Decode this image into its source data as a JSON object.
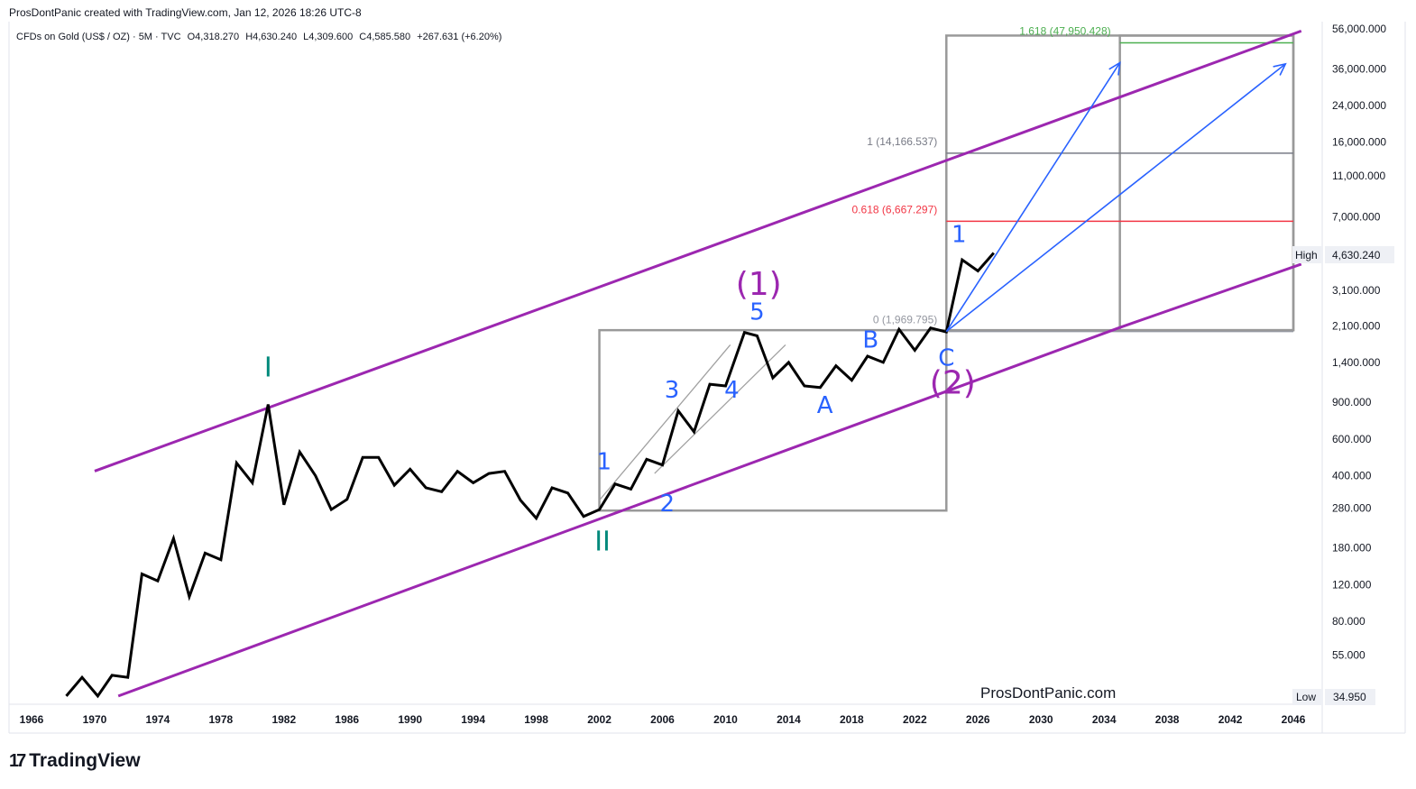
{
  "header": {
    "credit": "ProsDontPanic created with TradingView.com, Jan 12, 2026 18:26 UTC-8"
  },
  "symbol": {
    "name": "CFDs on Gold (US$ / OZ) · 5M · TVC",
    "open": "O4,318.270",
    "high": "H4,630.240",
    "low": "L4,309.600",
    "close": "C4,585.580",
    "change": "+267.631 (+6.20%)"
  },
  "watermark": "ProsDontPanic.com",
  "logo": {
    "text": "TradingView",
    "mark": "17"
  },
  "badges": {
    "high_label": "High",
    "high_value": "4,630.240",
    "low_label": "Low",
    "low_value": "34.950"
  },
  "colors": {
    "channel": "#9c27b0",
    "price": "#000000",
    "box": "#999999",
    "fib_1618": "#4caf50",
    "fib_1": "#787b86",
    "fib_0618": "#f23645",
    "fib_0": "#9598a1",
    "wave_blue": "#2962ff",
    "wave_teal": "#00897b",
    "wave_purple": "#9c27b0",
    "arrow": "#2962ff"
  },
  "chart_data": {
    "type": "line",
    "yscale": "log",
    "ylim": [
      34.95,
      56000
    ],
    "xlim": [
      1966,
      2048
    ],
    "x_ticks": [
      "1966",
      "1970",
      "1974",
      "1978",
      "1982",
      "1986",
      "1990",
      "1994",
      "1998",
      "2002",
      "2006",
      "2010",
      "2014",
      "2018",
      "2022",
      "2026",
      "2030",
      "2034",
      "2038",
      "2042",
      "2046"
    ],
    "y_ticks": [
      {
        "value": 56000,
        "label": "56,000.000"
      },
      {
        "value": 36000,
        "label": "36,000.000"
      },
      {
        "value": 24000,
        "label": "24,000.000"
      },
      {
        "value": 16000,
        "label": "16,000.000"
      },
      {
        "value": 11000,
        "label": "11,000.000"
      },
      {
        "value": 7000,
        "label": "7,000.000"
      },
      {
        "value": 3100,
        "label": "3,100.000"
      },
      {
        "value": 2100,
        "label": "2,100.000"
      },
      {
        "value": 1400,
        "label": "1,400.000"
      },
      {
        "value": 900,
        "label": "900.000"
      },
      {
        "value": 600,
        "label": "600.000"
      },
      {
        "value": 400,
        "label": "400.000"
      },
      {
        "value": 280,
        "label": "280.000"
      },
      {
        "value": 180,
        "label": "180.000"
      },
      {
        "value": 120,
        "label": "120.000"
      },
      {
        "value": 80,
        "label": "80.000"
      },
      {
        "value": 55,
        "label": "55.000"
      }
    ],
    "series": [
      {
        "x": [
          1968.2,
          1969.2,
          1970.2,
          1971.1,
          1972.1,
          1973.0,
          1974.0,
          1975.0,
          1976.0,
          1977.0,
          1978.0,
          1979.0,
          1980.0,
          1981.0,
          1982.0,
          1983.0,
          1984.0,
          1985.0,
          1986.0,
          1987.0,
          1988.0,
          1989.0,
          1990.0,
          1991.0,
          1992.0,
          1993.0,
          1994.0,
          1995.0,
          1996.0,
          1997.0,
          1998.0,
          1999.0,
          2000.0,
          2001.0,
          2002.0,
          2003.0,
          2004.0,
          2005.0,
          2006.0,
          2007.0,
          2008.0,
          2009.0,
          2010.0,
          2011.2,
          2012.0,
          2013.0,
          2014.0,
          2015.0,
          2016.0,
          2017.0,
          2018.0,
          2019.0,
          2020.0,
          2021.0,
          2022.0,
          2023.0,
          2024.0,
          2025.0,
          2026.0,
          2027.0
        ],
        "y": [
          35,
          43,
          35,
          44,
          43,
          135,
          125,
          200,
          105,
          170,
          158,
          460,
          370,
          880,
          290,
          520,
          400,
          275,
          308,
          490,
          490,
          360,
          430,
          350,
          335,
          420,
          370,
          410,
          420,
          305,
          250,
          350,
          330,
          255,
          275,
          365,
          345,
          480,
          450,
          820,
          650,
          1100,
          1080,
          1950,
          1880,
          1180,
          1400,
          1080,
          1060,
          1350,
          1150,
          1500,
          1400,
          2020,
          1600,
          2050,
          1960,
          4350,
          3850,
          4700
        ]
      }
    ],
    "channel": {
      "upper": {
        "x": [
          1970.0,
          2046.5
        ],
        "y": [
          421,
          54700
        ]
      },
      "lower": {
        "x": [
          1971.5,
          2035.0
        ],
        "y": [
          35.0,
          2060
        ]
      },
      "lower_ext": {
        "x": [
          2035.0,
          2046.5
        ],
        "y": [
          2060,
          4150
        ]
      }
    },
    "boxes": [
      {
        "x": [
          2002.0,
          2024.0
        ],
        "y": [
          272,
          2000
        ]
      },
      {
        "x": [
          2024.0,
          2046.0
        ],
        "y": [
          2000,
          52000
        ]
      },
      {
        "x": [
          2035.0,
          2046.0
        ],
        "y": [
          2000,
          52000
        ]
      }
    ],
    "sub_channel": [
      {
        "x": [
          2002.0,
          2010.3
        ],
        "y": [
          305,
          1700
        ]
      },
      {
        "x": [
          2005.5,
          2013.8
        ],
        "y": [
          410,
          1700
        ]
      }
    ],
    "fib_levels": [
      {
        "label": "1.618 (47,950.428)",
        "value": 47950.428,
        "color": "#4caf50",
        "x": [
          2035.0,
          2046.0
        ]
      },
      {
        "label": "1 (14,166.537)",
        "value": 14166.537,
        "color": "#787b86",
        "x": [
          2024.0,
          2046.0
        ]
      },
      {
        "label": "0.618 (6,667.297)",
        "value": 6667.297,
        "color": "#f23645",
        "x": [
          2024.0,
          2046.0
        ]
      },
      {
        "label": "0 (1,969.795)",
        "value": 1969.795,
        "color": "#9598a1",
        "x": [
          2024.0,
          2046.0
        ]
      }
    ],
    "arrows": [
      {
        "x": [
          2024.0,
          2035.0
        ],
        "y": [
          1970,
          38500
        ]
      },
      {
        "x": [
          2024.0,
          2045.5
        ],
        "y": [
          1970,
          38000
        ]
      }
    ],
    "wave_labels": [
      {
        "text": "I",
        "x": 1981.0,
        "y": 1200,
        "color": "#00897b",
        "size": 30
      },
      {
        "text": "II",
        "x": 2002.2,
        "y": 175,
        "color": "#00897b",
        "size": 30
      },
      {
        "text": "(1)",
        "x": 2012.1,
        "y": 2950,
        "color": "#9c27b0",
        "size": 36
      },
      {
        "text": "(2)",
        "x": 2024.4,
        "y": 990,
        "color": "#9c27b0",
        "size": 36
      },
      {
        "text": "1",
        "x": 2002.3,
        "y": 430,
        "color": "#2962ff",
        "size": 26
      },
      {
        "text": "2",
        "x": 2006.3,
        "y": 270,
        "color": "#2962ff",
        "size": 26
      },
      {
        "text": "3",
        "x": 2006.6,
        "y": 950,
        "color": "#2962ff",
        "size": 26
      },
      {
        "text": "4",
        "x": 2010.4,
        "y": 950,
        "color": "#2962ff",
        "size": 26
      },
      {
        "text": "5",
        "x": 2012.0,
        "y": 2250,
        "color": "#2962ff",
        "size": 26
      },
      {
        "text": "A",
        "x": 2016.3,
        "y": 800,
        "color": "#2962ff",
        "size": 26
      },
      {
        "text": "B",
        "x": 2019.2,
        "y": 1650,
        "color": "#2962ff",
        "size": 26
      },
      {
        "text": "C",
        "x": 2024.0,
        "y": 1350,
        "color": "#2962ff",
        "size": 26
      },
      {
        "text": "1",
        "x": 2024.8,
        "y": 5300,
        "color": "#2962ff",
        "size": 26
      }
    ],
    "grid": false
  }
}
